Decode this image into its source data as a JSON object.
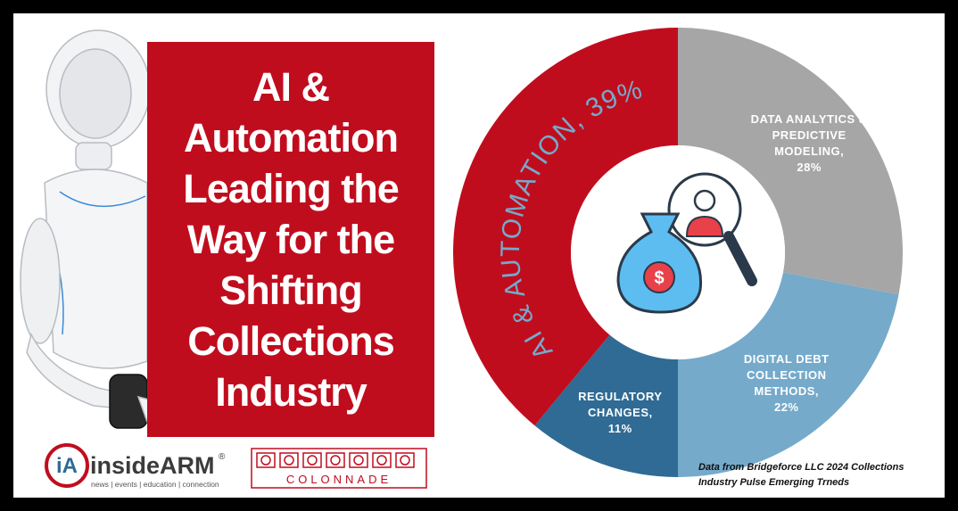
{
  "chart_data": {
    "type": "pie",
    "donut": true,
    "categories": [
      "DATA ANALYTICS & PREDICTIVE MODELING,",
      "DIGITAL DEBT COLLECTION METHODS,",
      "REGULATORY CHANGES,",
      "AI & AUTOMATION,"
    ],
    "values": [
      28,
      22,
      11,
      39
    ],
    "value_labels": [
      "28%",
      "22%",
      "11%",
      "39%"
    ],
    "colors": [
      "#a6a6a6",
      "#75aacb",
      "#2f6b94",
      "#c00d1e"
    ]
  },
  "headline": [
    "AI &",
    "Automation",
    "Leading the",
    "Way for the",
    "Shifting",
    "Collections",
    "Industry"
  ],
  "logos": {
    "insidearm": {
      "mark": "iA",
      "name": "insideARM",
      "registered": "®",
      "tagline": "news | events | education | connection"
    },
    "colonnade": {
      "name": "COLONNADE"
    }
  },
  "source": [
    "Data from Bridgeforce LLC 2024 Collections",
    "Industry Pulse Emerging Trneds"
  ]
}
